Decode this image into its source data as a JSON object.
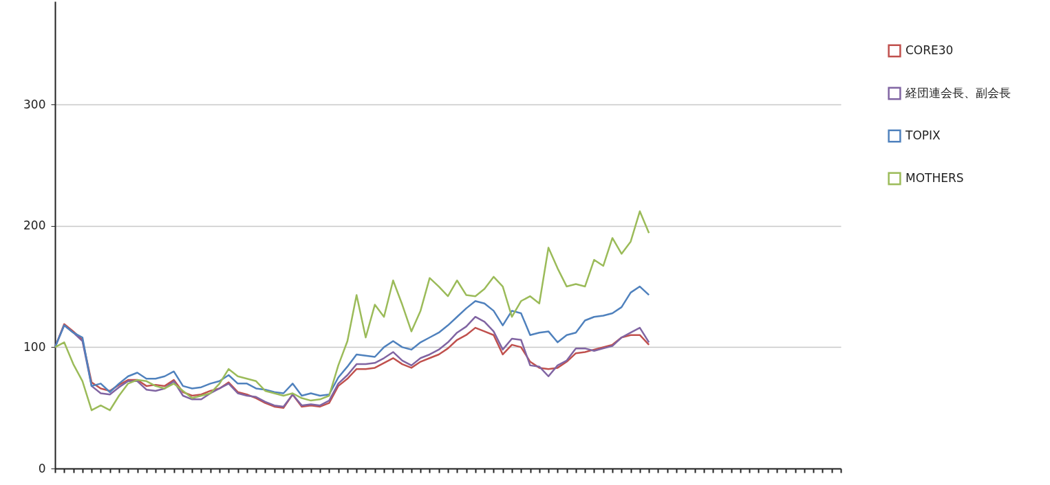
{
  "chart_data": {
    "type": "line",
    "categories": [
      null,
      null,
      null,
      null,
      null,
      null,
      null,
      null,
      null,
      null,
      null,
      null,
      null,
      null,
      null,
      null,
      null,
      null,
      null,
      null,
      null,
      null,
      null,
      null,
      null,
      null,
      null,
      null,
      null,
      null,
      null,
      null,
      null,
      null,
      null,
      null,
      null,
      null,
      null,
      null,
      null,
      null,
      null,
      null,
      null,
      null,
      null,
      null,
      null,
      null,
      null,
      null,
      null,
      null,
      null,
      null,
      null,
      null,
      null,
      null,
      null,
      null,
      null,
      null,
      null,
      null,
      null,
      null,
      null,
      null,
      null,
      null,
      null,
      null,
      null,
      null,
      null,
      null,
      null,
      null,
      null,
      null,
      null,
      null,
      null,
      null,
      null
    ],
    "series": [
      {
        "name": "CORE30",
        "color": "#c0504d",
        "values": [
          100,
          119,
          113,
          106,
          71,
          66,
          64,
          69,
          73,
          73,
          68,
          69,
          68,
          73,
          63,
          60,
          61,
          64,
          66,
          71,
          63,
          61,
          58,
          54,
          51,
          50,
          61,
          51,
          52,
          51,
          54,
          68,
          74,
          82,
          82,
          83,
          87,
          91,
          86,
          83,
          88,
          91,
          94,
          99,
          106,
          110,
          116,
          113,
          110,
          94,
          102,
          100,
          88,
          83,
          82,
          83,
          88,
          95,
          96,
          98,
          100,
          102,
          108,
          110,
          110,
          102,
          null,
          null,
          null,
          null,
          null,
          null,
          null,
          null,
          null,
          null,
          null,
          null,
          null,
          null,
          null,
          null,
          null,
          null,
          null,
          null,
          null
        ]
      },
      {
        "name": "経団連会長、副会長",
        "color": "#8064a2",
        "values": [
          100,
          118,
          112,
          105,
          68,
          62,
          61,
          67,
          72,
          72,
          65,
          64,
          66,
          72,
          60,
          57,
          57,
          62,
          66,
          70,
          62,
          60,
          59,
          55,
          52,
          51,
          61,
          52,
          53,
          52,
          56,
          70,
          77,
          86,
          86,
          87,
          91,
          96,
          89,
          85,
          91,
          94,
          98,
          104,
          112,
          117,
          125,
          121,
          113,
          98,
          107,
          106,
          85,
          84,
          76,
          85,
          89,
          99,
          99,
          97,
          99,
          101,
          108,
          112,
          116,
          104,
          null,
          null,
          null,
          null,
          null,
          null,
          null,
          null,
          null,
          null,
          null,
          null,
          null,
          null,
          null,
          null,
          null,
          null,
          null,
          null,
          null
        ]
      },
      {
        "name": "TOPIX",
        "color": "#4f81bd",
        "values": [
          100,
          118,
          112,
          108,
          68,
          70,
          63,
          70,
          76,
          79,
          74,
          74,
          76,
          80,
          68,
          66,
          67,
          70,
          72,
          77,
          70,
          70,
          66,
          65,
          63,
          62,
          70,
          60,
          62,
          60,
          61,
          75,
          84,
          94,
          93,
          92,
          100,
          105,
          100,
          98,
          104,
          108,
          112,
          118,
          125,
          132,
          138,
          136,
          130,
          118,
          130,
          128,
          110,
          112,
          113,
          104,
          110,
          112,
          122,
          125,
          126,
          128,
          133,
          145,
          150,
          143,
          null,
          null,
          null,
          null,
          null,
          null,
          null,
          null,
          null,
          null,
          null,
          null,
          null,
          null,
          null,
          null,
          null,
          null,
          null,
          null,
          null
        ]
      },
      {
        "name": "MOTHERS",
        "color": "#9bbb59",
        "values": [
          100,
          104,
          86,
          72,
          48,
          52,
          48,
          60,
          70,
          73,
          72,
          68,
          66,
          70,
          64,
          58,
          60,
          62,
          70,
          82,
          76,
          74,
          72,
          64,
          62,
          60,
          62,
          58,
          56,
          57,
          60,
          85,
          105,
          143,
          108,
          135,
          125,
          155,
          135,
          113,
          130,
          157,
          150,
          142,
          155,
          143,
          142,
          148,
          158,
          150,
          125,
          138,
          142,
          136,
          182,
          165,
          150,
          152,
          150,
          172,
          167,
          190,
          177,
          187,
          212,
          194,
          null,
          null,
          null,
          null,
          null,
          null,
          null,
          null,
          null,
          null,
          null,
          null,
          null,
          null,
          null,
          null,
          null,
          null,
          null,
          null,
          null
        ]
      }
    ],
    "ylim": [
      0,
      385
    ],
    "yticks": [
      0,
      100,
      200,
      300
    ],
    "grid": "y",
    "legend": "right",
    "tick_labels": "y",
    "line_style": "solid",
    "marker": "none"
  }
}
